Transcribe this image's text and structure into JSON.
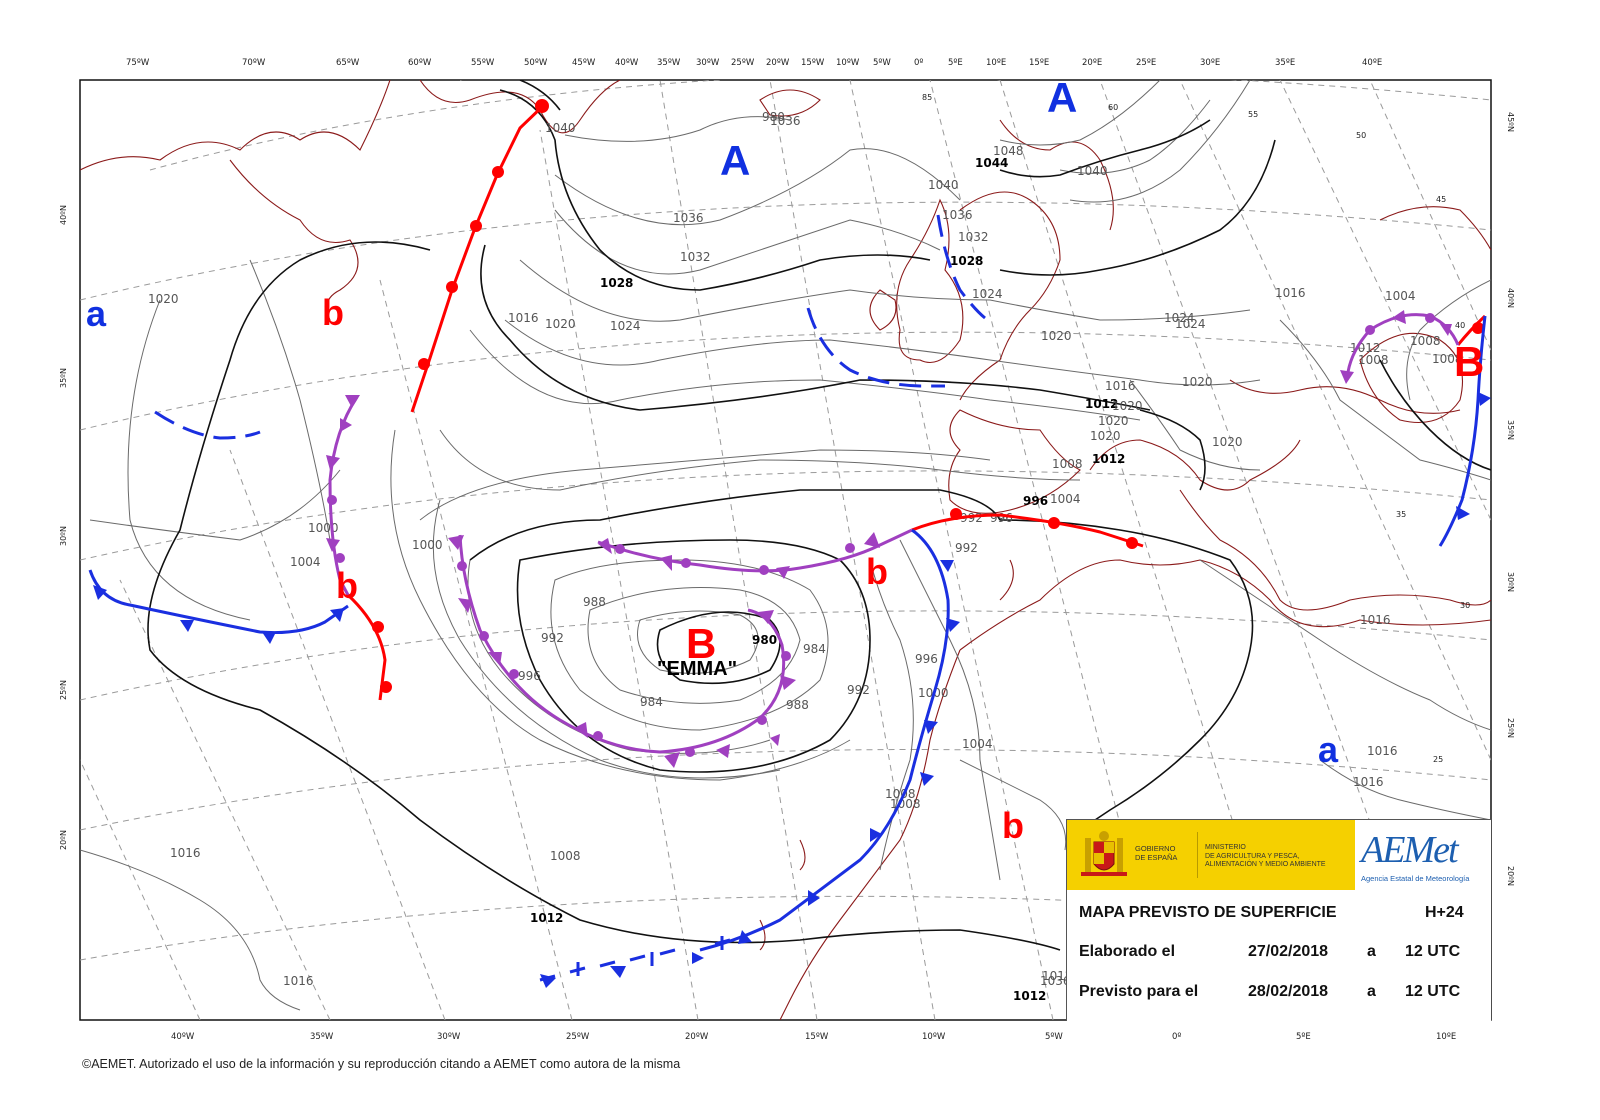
{
  "map": {
    "top_lon_labels": [
      "75ºW",
      "70ºW",
      "65ºW",
      "60ºW",
      "55ºW",
      "50ºW",
      "45ºW",
      "40ºW",
      "35ºW",
      "30ºW",
      "25ºW",
      "20ºW",
      "15ºW",
      "10ºW",
      "5ºW",
      "0º",
      "5ºE",
      "10ºE",
      "15ºE",
      "20ºE",
      "25ºE",
      "30ºE",
      "35ºE",
      "40ºE"
    ],
    "bottom_lon_labels": [
      "40ºW",
      "35ºW",
      "30ºW",
      "25ºW",
      "20ºW",
      "15ºW",
      "10ºW",
      "5ºW",
      "0º",
      "5ºE",
      "10ºE"
    ],
    "left_lat_labels": [
      "40ºN",
      "35ºN",
      "30ºN",
      "25ºN",
      "20ºN"
    ],
    "right_lat_labels": [
      "45ºN",
      "40ºN",
      "35ºN",
      "30ºN",
      "25ºN",
      "20ºN"
    ],
    "inner_lat_labels": [
      "85",
      "60",
      "55",
      "50",
      "45",
      "40",
      "35",
      "30",
      "25"
    ],
    "centers": {
      "high_a1": "A",
      "high_a2": "A",
      "high_a3": "a",
      "high_a4": "a",
      "low_b_main": "B",
      "low_b_east": "B",
      "low_b1": "b",
      "low_b2": "b",
      "low_b3": "b",
      "low_b4": "b",
      "storm_name": "\"EMMA\""
    },
    "isobar_labels": [
      "1040",
      "1036",
      "1032",
      "1028",
      "1024",
      "1020",
      "1016",
      "1012",
      "1008",
      "1004",
      "1000",
      "996",
      "992",
      "988",
      "984",
      "980",
      "1044",
      "1048",
      "1040",
      "1036",
      "1032",
      "1028",
      "1024",
      "1020",
      "1016",
      "1012",
      "1008",
      "1004",
      "1000",
      "996",
      "992",
      "988",
      "984",
      "1004",
      "1016",
      "1016",
      "1016",
      "1020",
      "1016",
      "1016",
      "1012",
      "1012",
      "1008",
      "1012",
      "1008",
      "1004",
      "1000",
      "996",
      "992",
      "1024",
      "1016",
      "1020",
      "1020",
      "1020",
      "1016",
      "1016",
      "1020",
      "1012",
      "1012",
      "1012",
      "1012",
      "1008",
      "1004",
      "1000",
      "996",
      "1036",
      "1028",
      "1024",
      "1008",
      "1012",
      "1016",
      "1012",
      "1020",
      "1016"
    ],
    "colors": {
      "warm_front": "#ff0000",
      "cold_front": "#1a2fe0",
      "occluded_front": "#a040c0",
      "coast": "#8b1a1a",
      "isobar": "#666666",
      "grid": "#999999",
      "high_label": "#1030e0",
      "low_label": "#ff0000"
    }
  },
  "info": {
    "gov_line1": "GOBIERNO",
    "gov_line2": "DE ESPAÑA",
    "min_line1": "MINISTERIO",
    "min_line2": "DE AGRICULTURA Y PESCA,",
    "min_line3": "ALIMENTACIÓN Y MEDIO AMBIENTE",
    "aemet_name": "AEMet",
    "aemet_sub": "Agencia Estatal de Meteorología",
    "title": "MAPA PREVISTO DE SUPERFICIE",
    "horizon": "H+24",
    "made_label": "Elaborado el",
    "made_date": "27/02/2018",
    "made_a": "a",
    "made_time": "12 UTC",
    "valid_label": "Previsto para el",
    "valid_date": "28/02/2018",
    "valid_a": "a",
    "valid_time": "12 UTC"
  },
  "footer": "©AEMET. Autorizado el uso de la información y su reproducción citando a AEMET como autora de la misma"
}
